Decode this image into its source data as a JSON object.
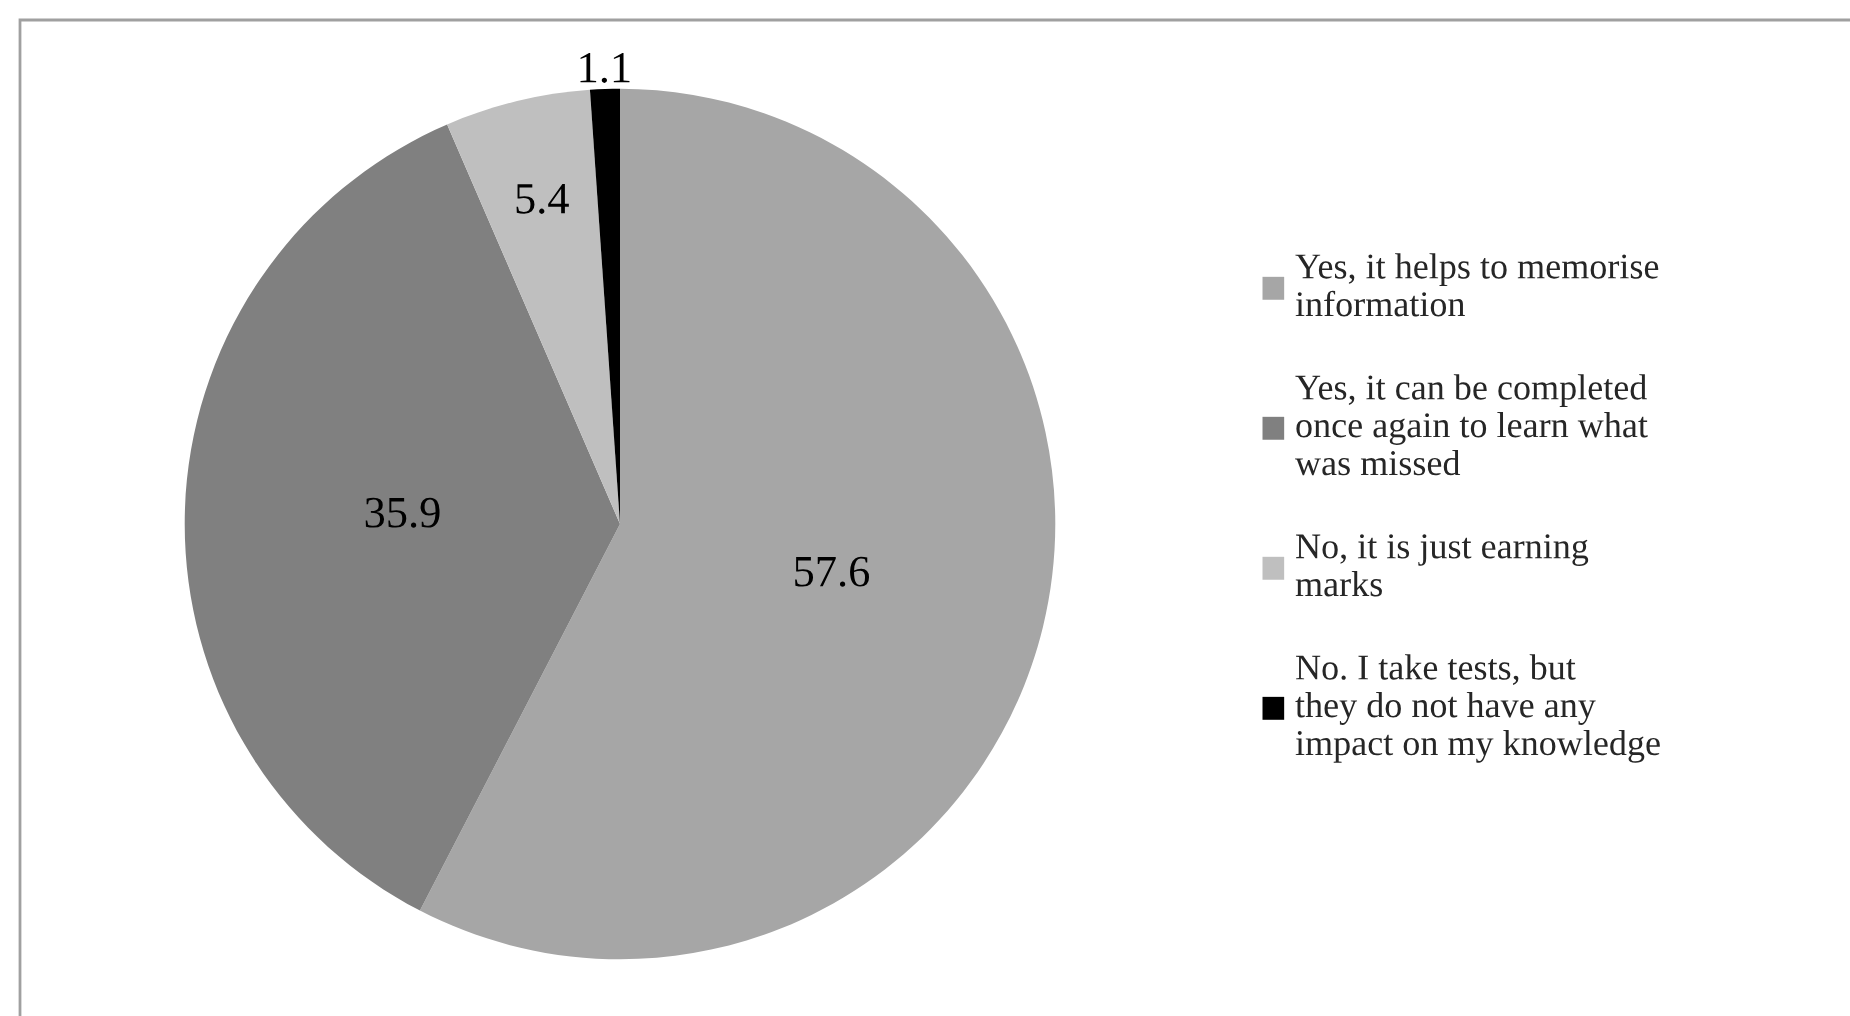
{
  "chart_data": {
    "type": "pie",
    "categories": [
      "Yes, it helps to memorise information",
      "Yes, it can be completed once again to learn what was missed",
      "No, it is just earning marks",
      "No. I take tests, but they do not have any impact on my knowledge"
    ],
    "values": [
      57.6,
      35.9,
      5.4,
      1.1
    ],
    "colors": [
      "#a6a6a6",
      "#808080",
      "#bfbfbf",
      "#000000"
    ],
    "data_labels": true,
    "legend": "right"
  }
}
